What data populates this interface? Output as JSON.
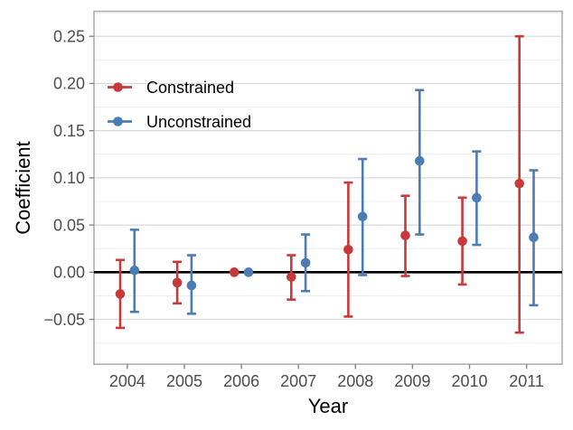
{
  "chart_data": {
    "type": "scatter",
    "subtype": "pointrange-errorbar",
    "title": "",
    "xlabel": "Year",
    "ylabel": "Coefficient",
    "categories": [
      "2004",
      "2005",
      "2006",
      "2007",
      "2008",
      "2009",
      "2010",
      "2011"
    ],
    "ylim": [
      -0.0975,
      0.2765
    ],
    "y_major_ticks": {
      "values": [
        -0.05,
        0.0,
        0.05,
        0.1,
        0.15,
        0.2,
        0.25
      ],
      "labels": [
        "−0.05",
        "0.00",
        "0.05",
        "0.10",
        "0.15",
        "0.20",
        "0.25"
      ]
    },
    "y_minor_ticks": [
      -0.075,
      -0.025,
      0.025,
      0.075,
      0.125,
      0.175,
      0.225,
      0.275
    ],
    "reference_line_y": 0,
    "reference_line_color": "#000000",
    "grid": "horizontal-major-and-minor",
    "legend_position": "top-left-inside",
    "series": [
      {
        "name": "Constrained",
        "color": "#c8393c",
        "estimates": [
          -0.023,
          -0.011,
          0.0,
          -0.005,
          0.024,
          0.039,
          0.033,
          0.094
        ],
        "ci_low": [
          -0.059,
          -0.033,
          0.0,
          -0.029,
          -0.047,
          -0.004,
          -0.013,
          -0.064
        ],
        "ci_high": [
          0.013,
          0.011,
          0.0,
          0.018,
          0.095,
          0.081,
          0.079,
          0.25
        ]
      },
      {
        "name": "Unconstrained",
        "color": "#4b7db4",
        "estimates": [
          0.002,
          -0.014,
          0.0,
          0.01,
          0.059,
          0.118,
          0.079,
          0.037
        ],
        "ci_low": [
          -0.042,
          -0.044,
          0.0,
          -0.02,
          -0.003,
          0.04,
          0.029,
          -0.035
        ],
        "ci_high": [
          0.045,
          0.018,
          0.0,
          0.04,
          0.12,
          0.193,
          0.128,
          0.108
        ]
      }
    ],
    "style_colors": {
      "panel_border": "#b0b0b0",
      "grid_major": "#d9d9d9",
      "grid_minor": "#ececec",
      "tick_mark": "#858585",
      "tick_label": "#4d4d4d",
      "axis_title": "#000000",
      "legend_text": "#000000"
    }
  }
}
